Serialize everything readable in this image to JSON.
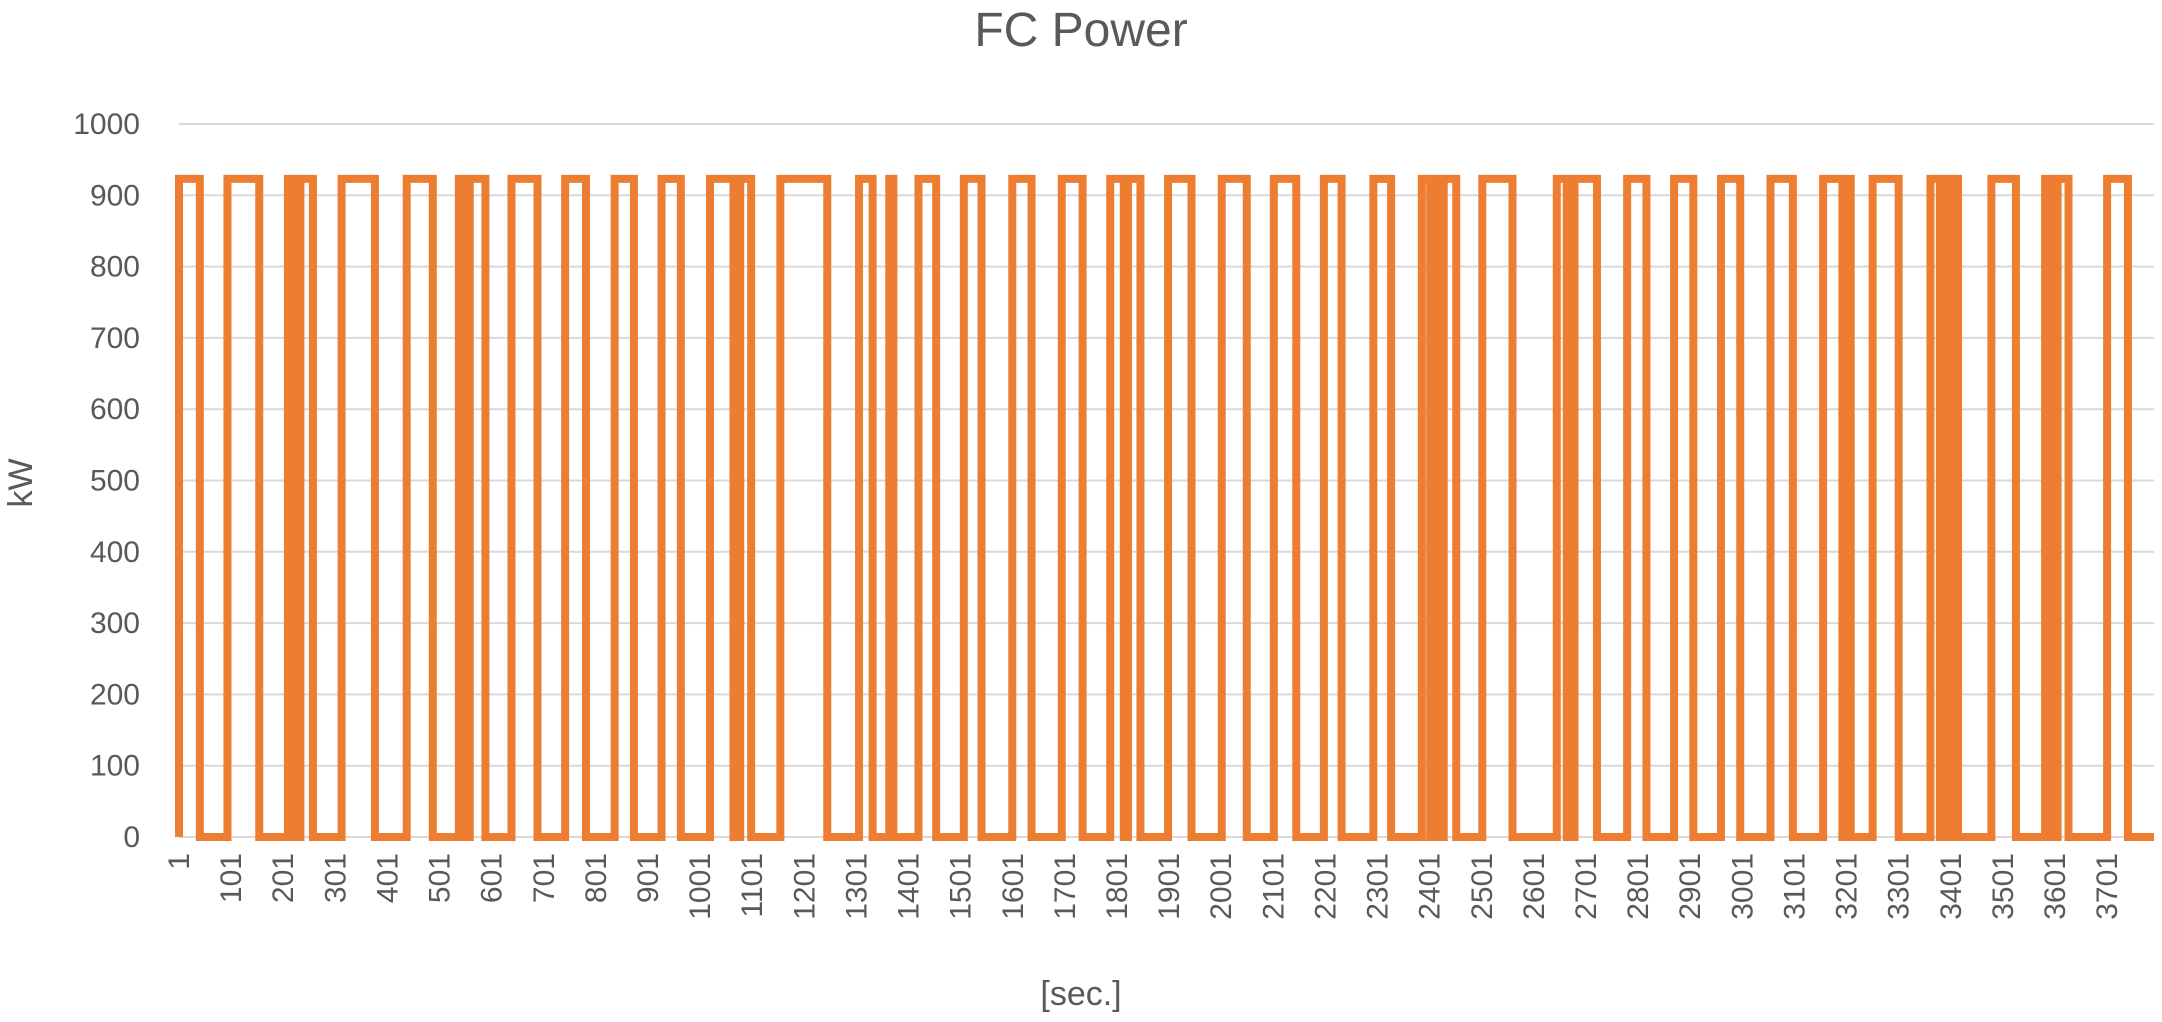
{
  "chart_data": {
    "type": "line",
    "title": "FC Power",
    "x_label": "[sec.]",
    "y_label": "kW",
    "color": "#ED7D31",
    "grid": true,
    "xlim": [
      1,
      3791
    ],
    "ylim": [
      0,
      1000
    ],
    "yticks": [
      0,
      100,
      200,
      300,
      400,
      500,
      600,
      700,
      800,
      900,
      1000
    ],
    "xticks": [
      1,
      101,
      201,
      301,
      401,
      501,
      601,
      701,
      801,
      901,
      1001,
      1101,
      1201,
      1301,
      1401,
      1501,
      1601,
      1701,
      1801,
      1901,
      2001,
      2101,
      2201,
      2301,
      2401,
      2501,
      2601,
      2701,
      2801,
      2901,
      3001,
      3101,
      3201,
      3301,
      3401,
      3501,
      3601,
      3701
    ],
    "x": [
      1,
      1,
      41,
      41,
      94,
      94,
      155,
      155,
      210,
      210,
      223,
      223,
      234,
      234,
      258,
      258,
      313,
      313,
      377,
      377,
      438,
      438,
      488,
      488,
      538,
      538,
      551,
      551,
      559,
      559,
      589,
      589,
      639,
      639,
      689,
      689,
      742,
      742,
      782,
      782,
      837,
      837,
      874,
      874,
      927,
      927,
      964,
      964,
      1020,
      1020,
      1065,
      1065,
      1078,
      1078,
      1099,
      1099,
      1155,
      1155,
      1245,
      1245,
      1306,
      1306,
      1332,
      1332,
      1364,
      1364,
      1372,
      1372,
      1420,
      1420,
      1454,
      1454,
      1507,
      1507,
      1541,
      1541,
      1600,
      1600,
      1637,
      1637,
      1695,
      1695,
      1735,
      1735,
      1788,
      1788,
      1814,
      1814,
      1822,
      1822,
      1846,
      1846,
      1899,
      1899,
      1944,
      1944,
      2002,
      2002,
      2050,
      2050,
      2102,
      2102,
      2145,
      2145,
      2198,
      2198,
      2232,
      2232,
      2293,
      2293,
      2327,
      2327,
      2386,
      2386,
      2402,
      2402,
      2409,
      2409,
      2420,
      2420,
      2428,
      2428,
      2452,
      2452,
      2502,
      2502,
      2560,
      2560,
      2645,
      2645,
      2664,
      2664,
      2679,
      2679,
      2722,
      2722,
      2780,
      2780,
      2817,
      2817,
      2870,
      2870,
      2907,
      2907,
      2960,
      2960,
      2997,
      2997,
      3055,
      3055,
      3098,
      3098,
      3156,
      3156,
      3193,
      3193,
      3201,
      3201,
      3209,
      3209,
      3251,
      3251,
      3301,
      3301,
      3362,
      3362,
      3380,
      3380,
      3388,
      3388,
      3399,
      3399,
      3410,
      3410,
      3415,
      3415,
      3479,
      3479,
      3526,
      3526,
      3582,
      3582,
      3595,
      3595,
      3606,
      3606,
      3627,
      3627,
      3701,
      3701,
      3741,
      3741,
      3791
    ],
    "values": [
      0,
      923,
      923,
      0,
      0,
      923,
      923,
      0,
      0,
      923,
      923,
      0,
      0,
      923,
      923,
      0,
      0,
      923,
      923,
      0,
      0,
      923,
      923,
      0,
      0,
      923,
      923,
      0,
      0,
      923,
      923,
      0,
      0,
      923,
      923,
      0,
      0,
      923,
      923,
      0,
      0,
      923,
      923,
      0,
      0,
      923,
      923,
      0,
      0,
      923,
      923,
      0,
      0,
      923,
      923,
      0,
      0,
      923,
      923,
      0,
      0,
      923,
      923,
      0,
      0,
      923,
      923,
      0,
      0,
      923,
      923,
      0,
      0,
      923,
      923,
      0,
      0,
      923,
      923,
      0,
      0,
      923,
      923,
      0,
      0,
      923,
      923,
      0,
      0,
      923,
      923,
      0,
      0,
      923,
      923,
      0,
      0,
      923,
      923,
      0,
      0,
      923,
      923,
      0,
      0,
      923,
      923,
      0,
      0,
      923,
      923,
      0,
      0,
      923,
      923,
      0,
      0,
      923,
      923,
      0,
      0,
      923,
      923,
      0,
      0,
      923,
      923,
      0,
      0,
      923,
      923,
      0,
      0,
      923,
      923,
      0,
      0,
      923,
      923,
      0,
      0,
      923,
      923,
      0,
      0,
      923,
      923,
      0,
      0,
      923,
      923,
      0,
      0,
      923,
      923,
      0,
      0,
      923,
      923,
      0,
      0,
      923,
      923,
      0,
      0,
      923,
      923,
      0,
      0,
      923,
      923,
      0,
      0,
      923,
      923,
      0,
      0,
      923,
      923,
      0,
      0,
      923,
      923,
      0,
      0,
      923,
      923,
      0,
      0,
      923,
      923,
      0,
      0
    ]
  }
}
